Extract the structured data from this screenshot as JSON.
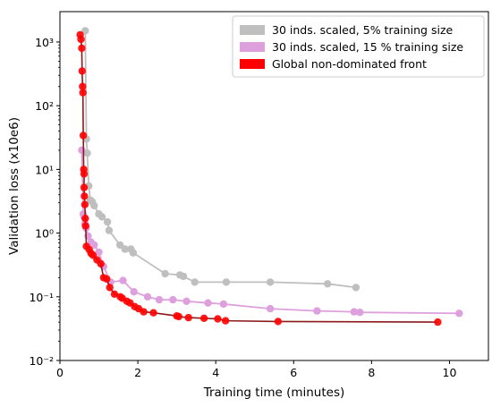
{
  "chart_data": {
    "type": "line",
    "xlabel": "Training time (minutes)",
    "ylabel": "Validation loss (x10e6)",
    "xlim": [
      0,
      11
    ],
    "ylim": [
      0.01,
      3000
    ],
    "yscale": "log",
    "xticks": [
      "0",
      "2",
      "4",
      "6",
      "8",
      "10"
    ],
    "xtick_values": [
      0,
      2,
      4,
      6,
      8,
      10
    ],
    "yticks": [
      "10⁻²",
      "10⁻¹",
      "10⁰",
      "10¹",
      "10²",
      "10³"
    ],
    "ytick_exponents": [
      -2,
      -1,
      0,
      1,
      2,
      3
    ],
    "grid": false,
    "legend": {
      "placement": "top-right"
    },
    "series": [
      {
        "name": "30 inds. scaled, 5% training size",
        "color": "#bfbfbf",
        "x": [
          0.65,
          0.68,
          0.7,
          0.74,
          0.78,
          0.83,
          0.88,
          1.0,
          1.08,
          1.22,
          1.26,
          1.54,
          1.67,
          1.82,
          1.88,
          2.7,
          3.08,
          3.17,
          3.46,
          4.27,
          5.4,
          6.87,
          7.6
        ],
        "y": [
          1500,
          30,
          18,
          5.5,
          3.3,
          3.1,
          2.7,
          2.0,
          1.8,
          1.5,
          1.1,
          0.65,
          0.56,
          0.56,
          0.49,
          0.23,
          0.22,
          0.21,
          0.17,
          0.17,
          0.17,
          0.16,
          0.14
        ]
      },
      {
        "name": "30 inds. scaled, 15 % training size",
        "color": "#dda0dd",
        "x": [
          0.56,
          0.6,
          0.62,
          0.64,
          0.67,
          0.72,
          0.8,
          0.88,
          1.0,
          1.12,
          1.3,
          1.62,
          1.9,
          2.25,
          2.55,
          2.9,
          3.25,
          3.8,
          4.2,
          5.4,
          6.6,
          7.55,
          7.7,
          10.25
        ],
        "y": [
          20,
          2.0,
          1.8,
          1.4,
          1.2,
          0.9,
          0.72,
          0.65,
          0.5,
          0.3,
          0.17,
          0.18,
          0.12,
          0.1,
          0.09,
          0.09,
          0.085,
          0.08,
          0.077,
          0.065,
          0.06,
          0.058,
          0.057,
          0.055
        ]
      },
      {
        "name": "Global non-dominated front",
        "color": "#ff0000",
        "x": [
          0.52,
          0.54,
          0.56,
          0.57,
          0.58,
          0.59,
          0.6,
          0.61,
          0.62,
          0.62,
          0.63,
          0.64,
          0.65,
          0.66,
          0.68,
          0.75,
          0.8,
          0.85,
          0.95,
          1.05,
          1.12,
          1.2,
          1.28,
          1.4,
          1.55,
          1.6,
          1.72,
          1.8,
          1.92,
          2.02,
          2.15,
          2.4,
          3.0,
          3.05,
          3.3,
          3.7,
          4.05,
          4.25,
          5.6,
          9.7
        ],
        "y": [
          1300,
          1100,
          800,
          350,
          200,
          160,
          34,
          10,
          8.5,
          5.2,
          3.8,
          2.8,
          1.7,
          1.3,
          0.62,
          0.55,
          0.48,
          0.45,
          0.38,
          0.33,
          0.2,
          0.19,
          0.14,
          0.11,
          0.1,
          0.095,
          0.085,
          0.08,
          0.07,
          0.065,
          0.058,
          0.056,
          0.05,
          0.049,
          0.047,
          0.046,
          0.045,
          0.042,
          0.041,
          0.04
        ]
      }
    ]
  }
}
